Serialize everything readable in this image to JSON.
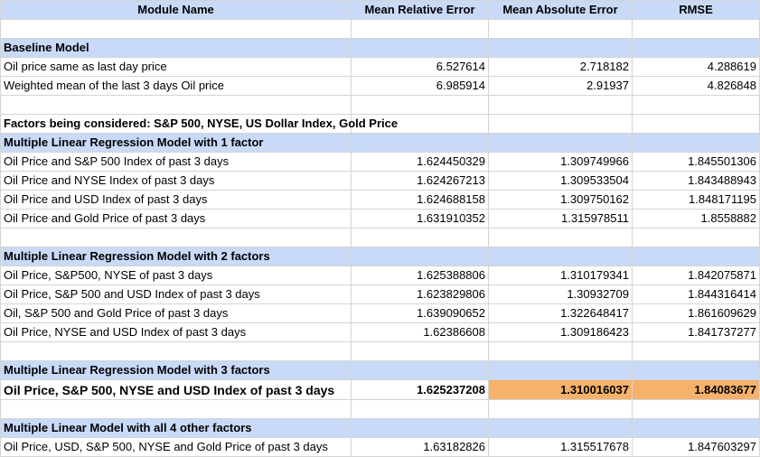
{
  "header": [
    "Module Name",
    "Mean Relative Error",
    "Mean Absolute Error",
    "RMSE"
  ],
  "rows": [
    {
      "type": "blank"
    },
    {
      "type": "section",
      "label": "Baseline Model"
    },
    {
      "type": "data",
      "label": "Oil price same as last day price",
      "mre": "6.527614",
      "mae": "2.718182",
      "rmse": "4.288619"
    },
    {
      "type": "data",
      "label": "Weighted mean of the last 3 days Oil price",
      "mre": "6.985914",
      "mae": "2.91937",
      "rmse": "4.826848"
    },
    {
      "type": "blank"
    },
    {
      "type": "factors",
      "label": "Factors being considered: S&P 500, NYSE,  US Dollar Index, Gold Price"
    },
    {
      "type": "section",
      "label": "Multiple Linear Regression Model with 1 factor"
    },
    {
      "type": "data",
      "label": "Oil Price and S&P 500 Index of past 3 days",
      "mre": "1.624450329",
      "mae": "1.309749966",
      "rmse": "1.845501306"
    },
    {
      "type": "data",
      "label": "Oil Price and NYSE Index of past 3 days",
      "mre": "1.624267213",
      "mae": "1.309533504",
      "rmse": "1.843488943"
    },
    {
      "type": "data",
      "label": "Oil Price and USD Index of past 3 days",
      "mre": "1.624688158",
      "mae": "1.309750162",
      "rmse": "1.848171195"
    },
    {
      "type": "data",
      "label": "Oil Price and Gold Price of past 3 days",
      "mre": "1.631910352",
      "mae": "1.315978511",
      "rmse": "1.8558882"
    },
    {
      "type": "blank"
    },
    {
      "type": "section",
      "label": "Multiple Linear Regression Model with 2 factors"
    },
    {
      "type": "data",
      "label": "Oil Price, S&P500, NYSE of past 3 days",
      "mre": "1.625388806",
      "mae": "1.310179341",
      "rmse": "1.842075871"
    },
    {
      "type": "data",
      "label": "Oil Price, S&P 500 and USD Index of past 3 days",
      "mre": "1.623829806",
      "mae": "1.30932709",
      "rmse": "1.844316414"
    },
    {
      "type": "data",
      "label": "Oil, S&P 500 and Gold Price of past 3 days",
      "mre": "1.639090652",
      "mae": "1.322648417",
      "rmse": "1.861609629"
    },
    {
      "type": "data",
      "label": "Oil Price, NYSE and USD Index of past 3 days",
      "mre": "1.62386608",
      "mae": "1.309186423",
      "rmse": "1.841737277"
    },
    {
      "type": "blank"
    },
    {
      "type": "section",
      "label": "Multiple Linear Regression Model with 3 factors"
    },
    {
      "type": "best",
      "label": "Oil Price, S&P 500, NYSE and USD Index of past 3 days",
      "mre": "1.625237208",
      "mae": "1.310016037",
      "rmse": "1.84083677"
    },
    {
      "type": "blank"
    },
    {
      "type": "section",
      "label": "Multiple Linear Model with all 4 other factors"
    },
    {
      "type": "data",
      "label": "Oil Price, USD, S&P 500, NYSE and Gold Price of past 3 days",
      "mre": "1.63182826",
      "mae": "1.315517678",
      "rmse": "1.847603297"
    }
  ],
  "colors": {
    "header_bg": "#c9daf8",
    "highlight_bg": "#f6b26b",
    "grid": "#d4d4d4"
  }
}
